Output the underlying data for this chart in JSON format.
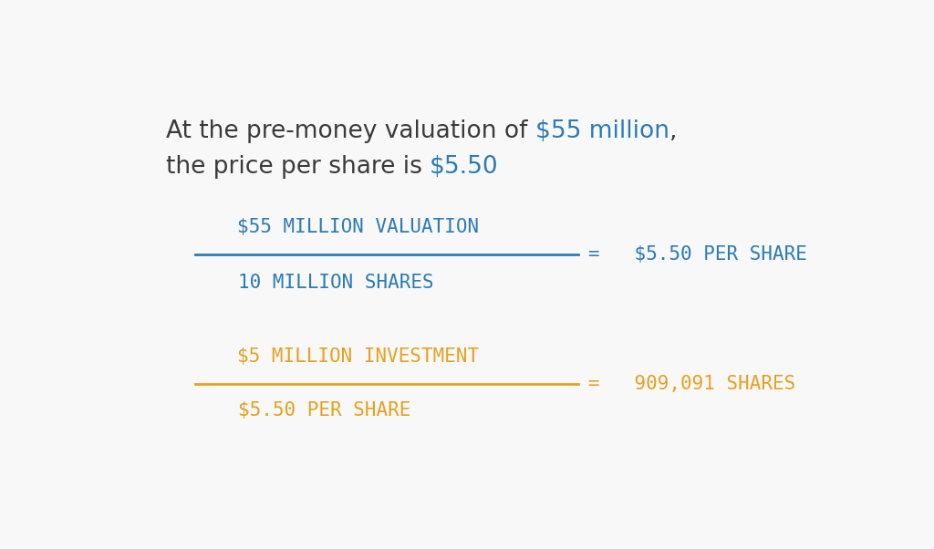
{
  "background_color": "#f8f8f8",
  "blue_color": "#2b7bb9",
  "orange_color": "#e8a020",
  "dark_color": "#3a3a3a",
  "intro_line1_black": "At the pre-money valuation of ",
  "intro_line1_blue": "$55 million",
  "intro_line1_black2": ",",
  "intro_line2_black": "the price per share is ",
  "intro_line2_blue": "$5.50",
  "fraction1_numerator": "$55 MILLION VALUATION",
  "fraction1_denominator": "10 MILLION SHARES",
  "fraction1_result": "=   $5.50 PER SHARE",
  "fraction2_numerator": "$5 MILLION INVESTMENT",
  "fraction2_denominator": "$5.50 PER SHARE",
  "fraction2_result": "=   909,091 SHARES",
  "intro_fontsize": 19,
  "label_fontsize": 15,
  "result_fontsize": 15
}
